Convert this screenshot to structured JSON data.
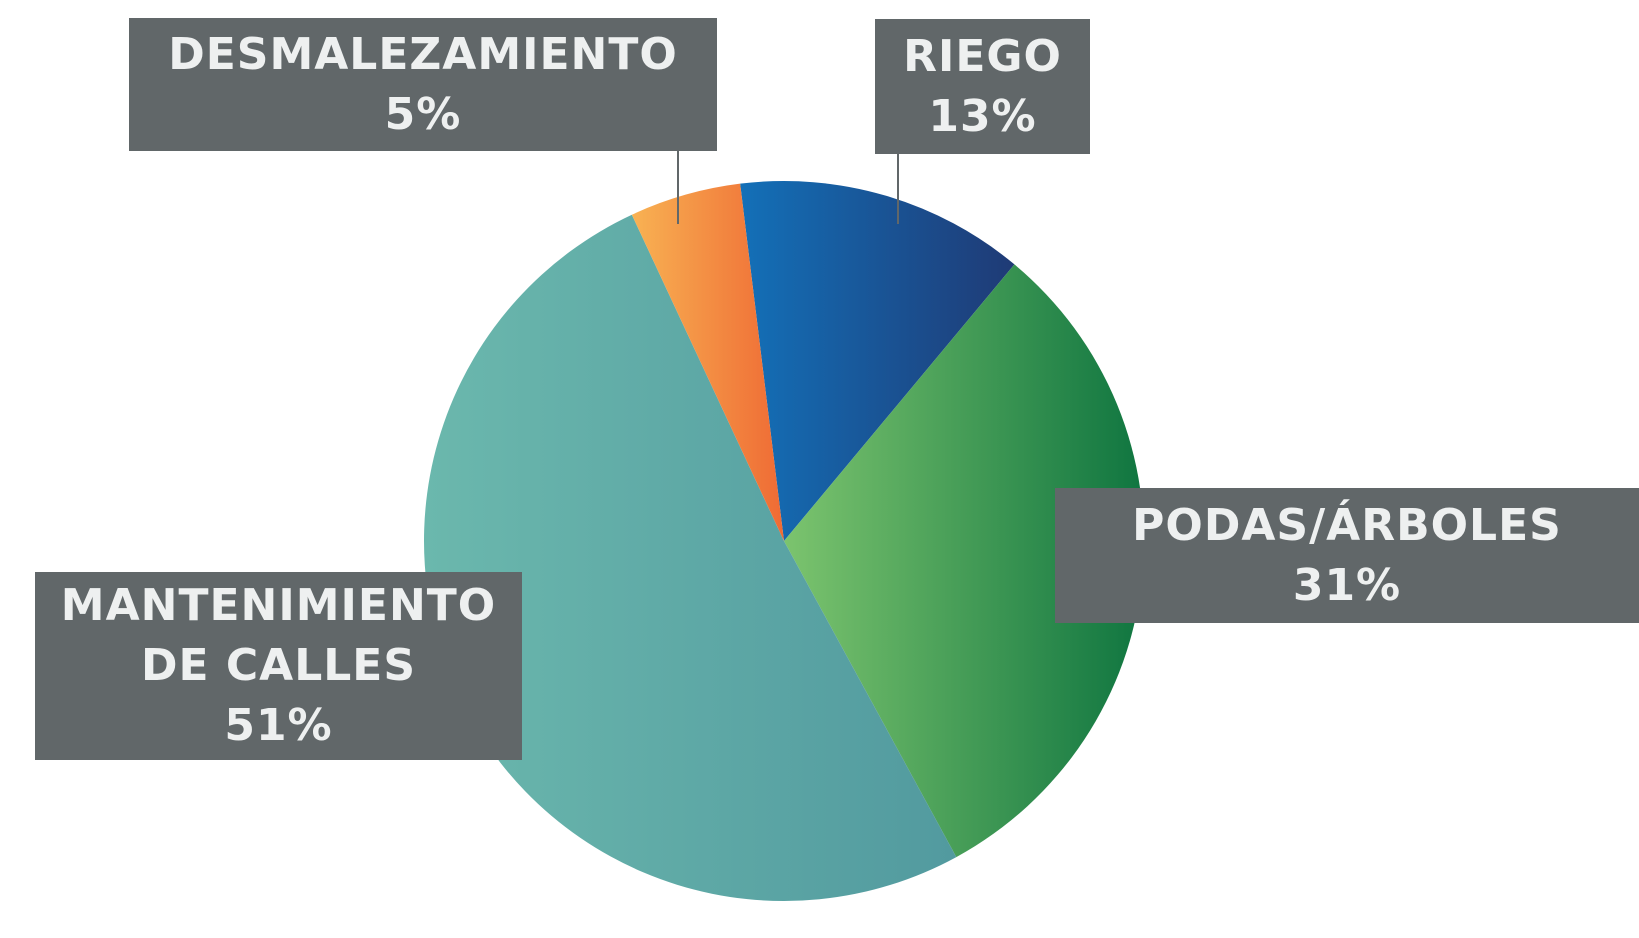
{
  "chart_data": {
    "type": "pie",
    "categories": [
      "RIEGO",
      "PODAS/ÁRBOLES",
      "MANTENIMIENTO DE CALLES",
      "DESMALEZAMIENTO"
    ],
    "values": [
      13,
      31,
      51,
      5
    ],
    "value_labels": [
      "13%",
      "31%",
      "51%",
      "5%"
    ],
    "colors": [
      [
        "#1370b8",
        "#1f3a75"
      ],
      [
        "#7cc46e",
        "#0f7540"
      ],
      [
        "#6bb8ad",
        "#529a9f"
      ],
      [
        "#f8b253",
        "#ef6a34"
      ]
    ]
  }
}
